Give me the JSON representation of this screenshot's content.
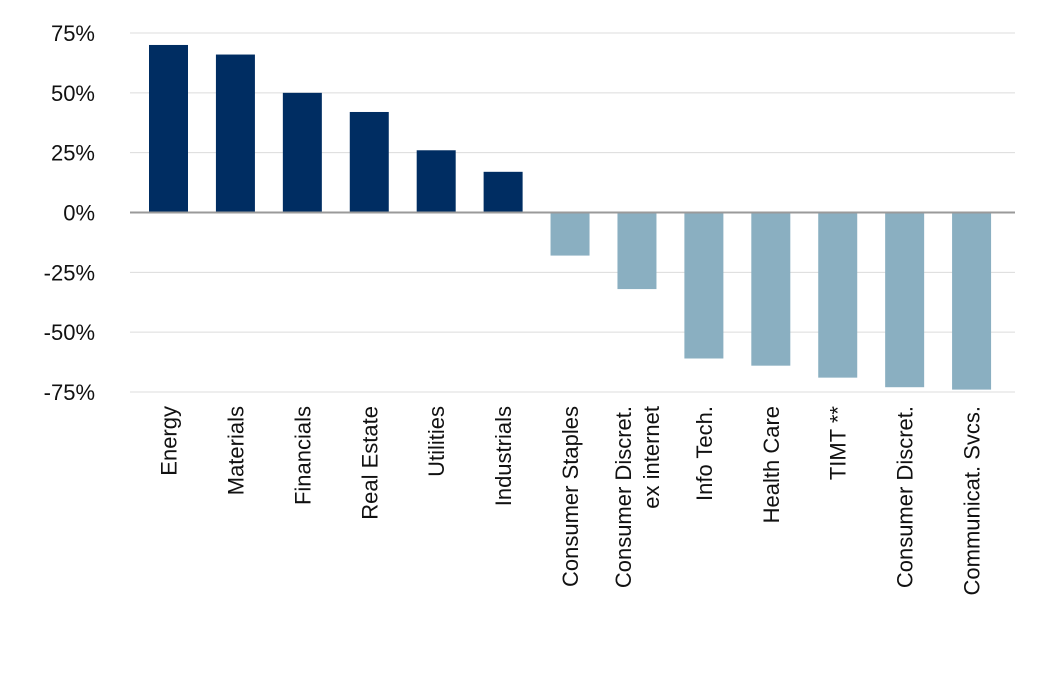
{
  "chart_data": {
    "type": "bar",
    "categories": [
      [
        "Energy"
      ],
      [
        "Materials"
      ],
      [
        "Financials"
      ],
      [
        "Real Estate"
      ],
      [
        "Utilities"
      ],
      [
        "Industrials"
      ],
      [
        "Consumer Staples"
      ],
      [
        "Consumer Discret.",
        "ex internet"
      ],
      [
        "Info Tech."
      ],
      [
        "Health Care"
      ],
      [
        "TIMT **"
      ],
      [
        "Consumer Discret."
      ],
      [
        "Communicat. Svcs."
      ]
    ],
    "values": [
      70,
      66,
      50,
      42,
      26,
      17,
      -18,
      -32,
      -61,
      -64,
      -69,
      -73,
      -74
    ],
    "yticks": [
      "75%",
      "50%",
      "25%",
      "0%",
      "-25%",
      "-50%",
      "-75%"
    ],
    "ytick_values": [
      75,
      50,
      25,
      0,
      -25,
      -50,
      -75
    ],
    "ylim": [
      -75,
      75
    ],
    "grid": true,
    "colors": {
      "positive": "#002d62",
      "negative": "#8aafc1",
      "grid": "#dcdcdc",
      "zero": "#9a9a9a"
    }
  }
}
